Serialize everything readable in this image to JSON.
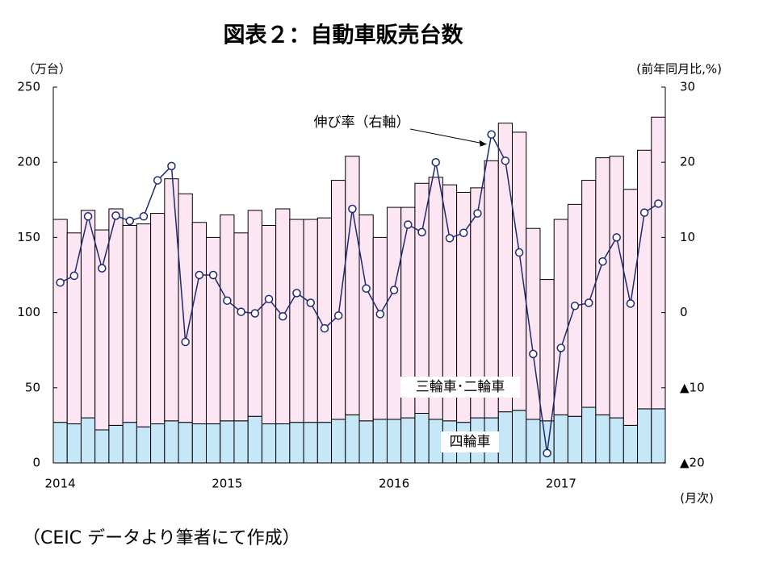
{
  "chart_data": {
    "type": "stacked_bar_line",
    "title": "図表２：自動車販売台数",
    "y_unit_label": "（万台）",
    "y2_unit_label": "(前年同月比,%)",
    "x_unit_label": "(月次)",
    "source": "（CEIC データより筆者にて作成）",
    "categories": [
      "2014",
      null,
      null,
      null,
      null,
      null,
      null,
      null,
      null,
      null,
      null,
      null,
      "2015",
      null,
      null,
      null,
      null,
      null,
      null,
      null,
      null,
      null,
      null,
      null,
      "2016",
      null,
      null,
      null,
      null,
      null,
      null,
      null,
      null,
      null,
      null,
      null,
      "2017",
      null,
      null,
      null,
      null,
      null,
      null,
      null
    ],
    "series": [
      {
        "name": "四輪車",
        "color": "#c6e7f8",
        "values": [
          27,
          26,
          30,
          22,
          25,
          27,
          24,
          26,
          28,
          27,
          26,
          26,
          28,
          28,
          31,
          26,
          26,
          27,
          27,
          27,
          29,
          32,
          28,
          29,
          29,
          30,
          33,
          29,
          28,
          27,
          30,
          30,
          34,
          35,
          29,
          28,
          32,
          31,
          37,
          32,
          30,
          25,
          36,
          36
        ]
      },
      {
        "name": "三輪車･二輪車",
        "color": "#fde6f3",
        "values": [
          135,
          127,
          138,
          133,
          144,
          131,
          135,
          140,
          161,
          152,
          134,
          124,
          137,
          125,
          137,
          132,
          143,
          135,
          135,
          136,
          159,
          172,
          137,
          121,
          141,
          140,
          153,
          161,
          157,
          153,
          153,
          171,
          192,
          185,
          127,
          94,
          130,
          141,
          151,
          171,
          174,
          157,
          172,
          194
        ]
      },
      {
        "name": "伸び率（右軸）",
        "color": "#1f2a6e",
        "axis": "y2",
        "values": [
          4.0,
          4.9,
          12.8,
          5.9,
          12.9,
          12.2,
          12.8,
          17.6,
          19.5,
          -3.9,
          5.0,
          5.0,
          1.6,
          0.1,
          -0.1,
          1.8,
          -0.5,
          2.6,
          1.3,
          -2.1,
          -0.4,
          13.8,
          3.2,
          -0.2,
          3.0,
          11.7,
          10.7,
          20.0,
          9.9,
          10.6,
          13.2,
          23.7,
          20.2,
          8.0,
          -5.5,
          -18.7,
          -4.7,
          0.9,
          1.3,
          6.8,
          10.0,
          1.2,
          13.3,
          14.5
        ]
      }
    ],
    "ylim": [
      0,
      250
    ],
    "yticks": [
      0,
      50,
      100,
      150,
      200,
      250
    ],
    "y2lim": [
      -20,
      30
    ],
    "y2ticks": [
      {
        "value": -20,
        "label": "▲20"
      },
      {
        "value": -10,
        "label": "▲10"
      },
      0,
      10,
      20,
      30
    ]
  }
}
